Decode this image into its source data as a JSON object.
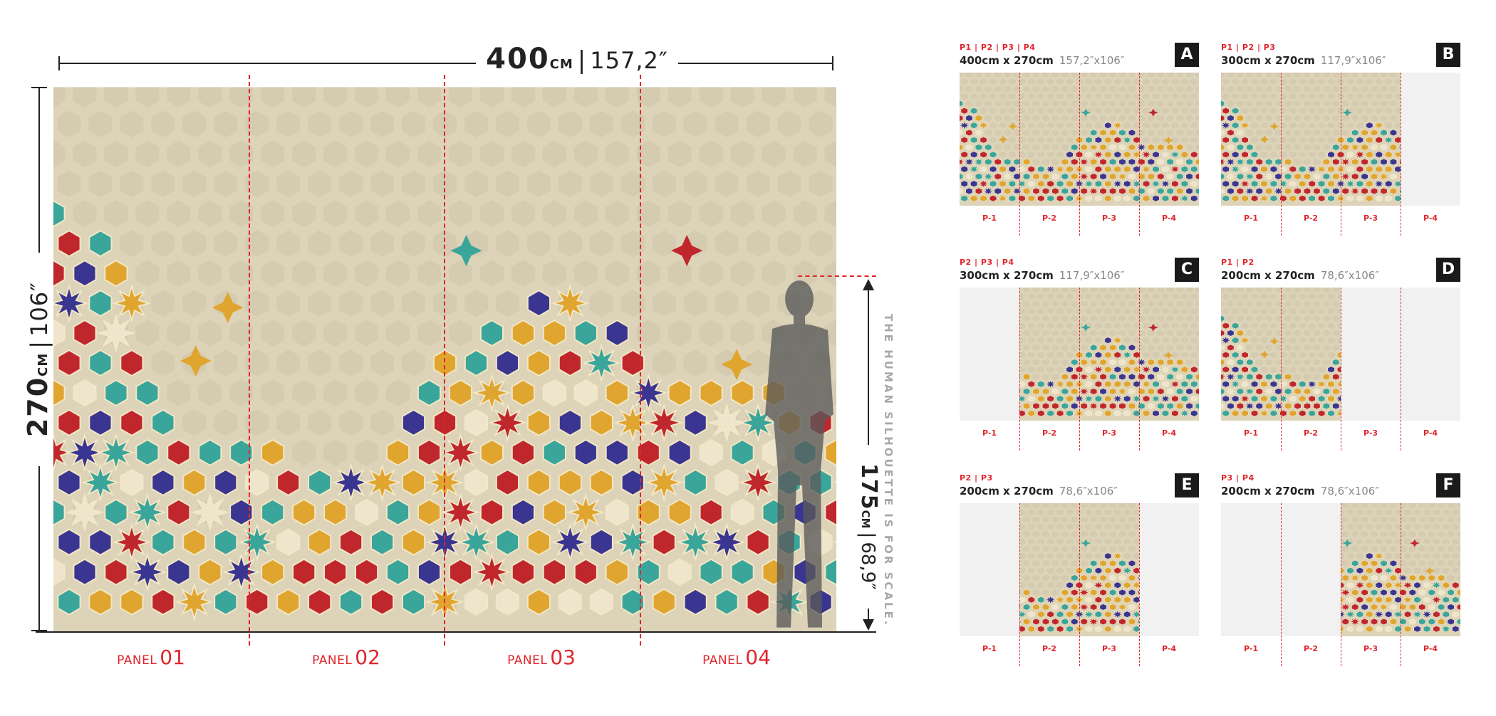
{
  "main": {
    "width_value": "400",
    "width_unit": "CM",
    "width_imperial": "157,2″",
    "height_value": "270",
    "height_unit": "CM",
    "height_imperial": "106″",
    "person_value": "175",
    "person_unit": "CM",
    "person_imperial": "68,9″",
    "scale_note": "THE HUMAN SILHOUETTE IS FOR SCALE.",
    "panels": [
      {
        "label": "PANEL",
        "num": "01"
      },
      {
        "label": "PANEL",
        "num": "02"
      },
      {
        "label": "PANEL",
        "num": "03"
      },
      {
        "label": "PANEL",
        "num": "04"
      }
    ]
  },
  "variants": [
    {
      "letter": "A",
      "panels": "P1 | P2 | P3 | P4",
      "size": "400cm x 270cm",
      "size_imperial": "157,2″x106″",
      "start": 0,
      "count": 4
    },
    {
      "letter": "B",
      "panels": "P1 | P2 | P3",
      "size": "300cm x 270cm",
      "size_imperial": "117,9″x106″",
      "start": 0,
      "count": 3
    },
    {
      "letter": "C",
      "panels": "P2 | P3 | P4",
      "size": "300cm x 270cm",
      "size_imperial": "117,9″x106″",
      "start": 1,
      "count": 3
    },
    {
      "letter": "D",
      "panels": "P1 | P2",
      "size": "200cm x 270cm",
      "size_imperial": "78,6″x106″",
      "start": 0,
      "count": 2
    },
    {
      "letter": "E",
      "panels": "P2 | P3",
      "size": "200cm x 270cm",
      "size_imperial": "78,6″x106″",
      "start": 1,
      "count": 2
    },
    {
      "letter": "F",
      "panels": "P3 | P4",
      "size": "200cm x 270cm",
      "size_imperial": "78,6″x106″",
      "start": 2,
      "count": 2
    }
  ],
  "panel_short_labels": [
    "P-1",
    "P-2",
    "P-3",
    "P-4"
  ],
  "colors": {
    "accent_red": "#e0262c",
    "background_plaster": "#ddd3b8",
    "tile_red": "#c0272d",
    "tile_gold": "#e0a52e",
    "tile_teal": "#3aa59a",
    "tile_blue": "#3a3590",
    "tile_cream": "#eee5cc"
  }
}
